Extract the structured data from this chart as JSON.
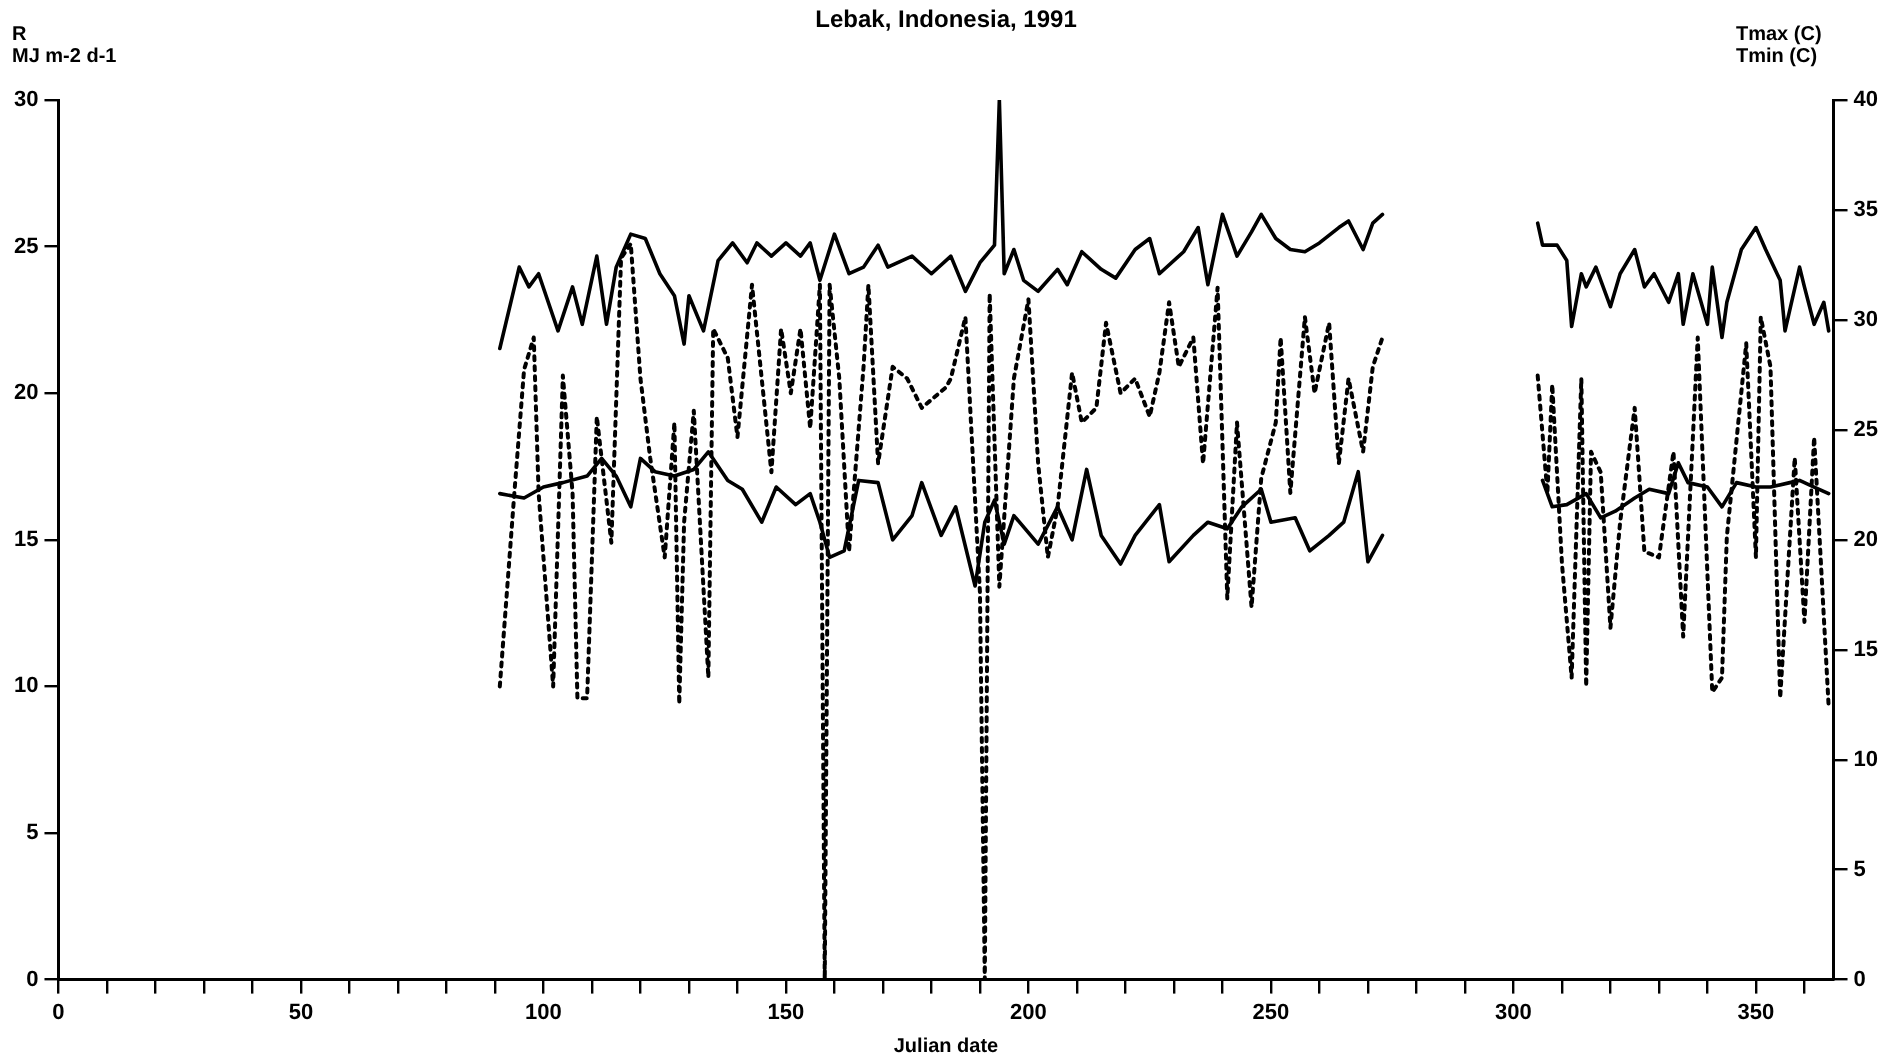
{
  "chart_data": {
    "type": "line",
    "title": "Lebak, Indonesia, 1991",
    "xlabel": "Julian date",
    "ylabel": "R\nMJ m-2 d-1",
    "y2label": "Tmax (C)\nTmin (C)",
    "xlim": [
      0,
      366
    ],
    "xticks": [
      0,
      {
        "value": 10,
        "label": null
      },
      {
        "value": 20,
        "label": null
      },
      {
        "value": 30,
        "label": null
      },
      {
        "value": 40,
        "label": null
      },
      50,
      {
        "value": 60,
        "label": null
      },
      {
        "value": 70,
        "label": null
      },
      {
        "value": 80,
        "label": null
      },
      {
        "value": 90,
        "label": null
      },
      100,
      {
        "value": 110,
        "label": null
      },
      {
        "value": 120,
        "label": null
      },
      {
        "value": 130,
        "label": null
      },
      {
        "value": 140,
        "label": null
      },
      150,
      {
        "value": 160,
        "label": null
      },
      {
        "value": 170,
        "label": null
      },
      {
        "value": 180,
        "label": null
      },
      {
        "value": 190,
        "label": null
      },
      200,
      {
        "value": 210,
        "label": null
      },
      {
        "value": 220,
        "label": null
      },
      {
        "value": 230,
        "label": null
      },
      {
        "value": 240,
        "label": null
      },
      250,
      {
        "value": 260,
        "label": null
      },
      {
        "value": 270,
        "label": null
      },
      {
        "value": 280,
        "label": null
      },
      {
        "value": 290,
        "label": null
      },
      300,
      {
        "value": 310,
        "label": null
      },
      {
        "value": 320,
        "label": null
      },
      {
        "value": 330,
        "label": null
      },
      {
        "value": 340,
        "label": null
      },
      350,
      {
        "value": 360,
        "label": null
      }
    ],
    "ylim": [
      0,
      30
    ],
    "yticks": [
      0,
      5,
      10,
      15,
      20,
      25,
      30
    ],
    "y2lim": [
      0,
      40
    ],
    "y2ticks": [
      0,
      5,
      10,
      15,
      20,
      25,
      30,
      35,
      40
    ],
    "grid": false,
    "legend": false,
    "marker": "none",
    "series": [
      {
        "color": "#000000",
        "axis": "y2",
        "line_style": "solid",
        "x": [
          91,
          95,
          97,
          99,
          103,
          106,
          108,
          111,
          113,
          115,
          118,
          121,
          124,
          127,
          129,
          130,
          133,
          136,
          139,
          142,
          144,
          147,
          150,
          153,
          155,
          157,
          160,
          163,
          166,
          169,
          171,
          176,
          180,
          184,
          187,
          190,
          193,
          194,
          195,
          197,
          199,
          202,
          206,
          208,
          211,
          215,
          218,
          222,
          225,
          227,
          232,
          235,
          237,
          240,
          243,
          246,
          248,
          251,
          254,
          257,
          260,
          264,
          266,
          269,
          271,
          273,
          290,
          305,
          306,
          309,
          311,
          312,
          314,
          315,
          317,
          320,
          322,
          325,
          327,
          329,
          332,
          334,
          335,
          337,
          340,
          341,
          343,
          344,
          347,
          350,
          352,
          355,
          356,
          359,
          360,
          362,
          364,
          365
        ],
        "values": [
          28.7,
          32.4,
          31.5,
          32.1,
          29.5,
          31.5,
          29.8,
          32.9,
          29.8,
          32.4,
          33.9,
          33.7,
          32.1,
          31.1,
          28.9,
          31.1,
          29.5,
          32.7,
          33.5,
          32.6,
          33.5,
          32.9,
          33.5,
          32.9,
          33.5,
          31.8,
          33.9,
          32.1,
          32.4,
          33.4,
          32.4,
          32.9,
          32.1,
          32.9,
          31.3,
          32.6,
          33.4,
          40,
          32.1,
          33.2,
          31.8,
          31.3,
          32.3,
          31.6,
          33.1,
          32.3,
          31.9,
          33.2,
          33.7,
          32.1,
          33.1,
          34.2,
          31.6,
          34.8,
          32.9,
          34,
          34.8,
          33.7,
          33.2,
          33.1,
          33.5,
          34.2,
          34.5,
          33.2,
          34.4,
          34.8,
          null,
          34.4,
          33.4,
          33.4,
          32.7,
          29.7,
          32.1,
          31.5,
          32.4,
          30.6,
          32.1,
          33.2,
          31.5,
          32.1,
          30.8,
          32.1,
          29.8,
          32.1,
          29.8,
          32.4,
          29.2,
          30.8,
          33.2,
          34.2,
          33.2,
          31.8,
          29.5,
          32.4,
          31.5,
          29.8,
          30.8,
          29.5
        ]
      },
      {
        "color": "#000000",
        "axis": "y2",
        "line_style": "solid",
        "x": [
          91,
          96,
          100,
          104,
          109,
          112,
          115,
          118,
          120,
          123,
          127,
          131,
          134,
          138,
          141,
          145,
          148,
          152,
          155,
          157,
          159,
          162,
          165,
          169,
          172,
          176,
          178,
          182,
          185,
          189,
          191,
          193,
          195,
          197,
          202,
          206,
          209,
          212,
          215,
          219,
          222,
          227,
          229,
          234,
          237,
          241,
          244,
          248,
          250,
          255,
          258,
          262,
          265,
          268,
          270,
          273,
          290,
          306,
          308,
          311,
          315,
          318,
          321,
          325,
          328,
          332,
          334,
          336,
          340,
          343,
          346,
          350,
          353,
          357,
          359,
          362,
          365
        ],
        "values": [
          22.1,
          21.9,
          22.4,
          22.6,
          22.9,
          23.7,
          22.9,
          21.5,
          23.7,
          23.1,
          22.9,
          23.2,
          24,
          22.7,
          22.3,
          20.8,
          22.4,
          21.6,
          22.1,
          20.8,
          19.2,
          19.5,
          22.7,
          22.6,
          20,
          21.1,
          22.6,
          20.2,
          21.5,
          17.9,
          20.8,
          21.8,
          19.8,
          21.1,
          19.8,
          21.5,
          20,
          23.2,
          20.2,
          18.9,
          20.2,
          21.6,
          19,
          20.2,
          20.8,
          20.5,
          21.5,
          22.3,
          20.8,
          21,
          19.5,
          20.2,
          20.8,
          23.1,
          19,
          20.2,
          null,
          22.7,
          21.5,
          21.6,
          22.1,
          21,
          21.3,
          21.9,
          22.3,
          22.1,
          23.5,
          22.6,
          22.4,
          21.5,
          22.6,
          22.4,
          22.4,
          22.6,
          22.7,
          22.4,
          22.1
        ]
      },
      {
        "color": "#000000",
        "line_style": "dotted",
        "x": [
          91,
          94,
          96,
          98,
          99,
          102,
          104,
          106,
          107,
          109,
          111,
          114,
          116,
          118,
          120,
          122,
          125,
          127,
          128,
          129,
          131,
          134,
          135,
          138,
          140,
          143,
          147,
          149,
          151,
          153,
          155,
          157,
          158,
          159,
          161,
          163,
          166,
          167,
          169,
          172,
          175,
          178,
          183,
          184,
          187,
          190,
          191,
          192,
          194,
          197,
          200,
          202,
          204,
          206,
          209,
          211,
          214,
          216,
          219,
          222,
          225,
          227,
          229,
          231,
          234,
          236,
          239,
          241,
          243,
          246,
          248,
          251,
          252,
          254,
          257,
          259,
          262,
          264,
          266,
          269,
          271,
          273,
          290,
          305,
          307,
          308,
          310,
          312,
          314,
          315,
          316,
          318,
          320,
          322,
          325,
          327,
          330,
          333,
          335,
          338,
          341,
          343,
          344,
          348,
          350,
          351,
          353,
          355,
          358,
          360,
          362,
          365
        ],
        "values": [
          10,
          16.6,
          20.8,
          21.9,
          16.6,
          10,
          20.6,
          16.6,
          9.6,
          9.6,
          19.2,
          14.9,
          24.6,
          25.1,
          20.5,
          17.8,
          14.4,
          19,
          9.4,
          15.6,
          19.4,
          10.3,
          22.2,
          21.2,
          18.5,
          23.7,
          17.3,
          22.2,
          20,
          22.2,
          18.8,
          23.7,
          0,
          23.7,
          20.5,
          14.6,
          20.9,
          23.7,
          17.6,
          20.9,
          20.5,
          19.5,
          20.2,
          20.5,
          22.6,
          13.2,
          0,
          23.4,
          13.4,
          20.5,
          23.2,
          17.6,
          14.4,
          16.1,
          20.7,
          19,
          19.5,
          22.4,
          20,
          20.5,
          19.2,
          20.7,
          23.1,
          20.9,
          21.9,
          17.6,
          23.6,
          13,
          19,
          12.7,
          17.1,
          19,
          21.9,
          16.6,
          22.6,
          20,
          22.4,
          17.6,
          20.5,
          18,
          20.9,
          21.9,
          null,
          20.6,
          16.6,
          20.3,
          14.2,
          10.3,
          20.5,
          10,
          18,
          17.3,
          12,
          15.6,
          19.5,
          14.6,
          14.4,
          18,
          11.7,
          21.9,
          9.8,
          10.3,
          15.1,
          21.7,
          14.4,
          22.6,
          20.9,
          9.6,
          17.8,
          12.2,
          18.5,
          9.3
        ]
      }
    ]
  }
}
